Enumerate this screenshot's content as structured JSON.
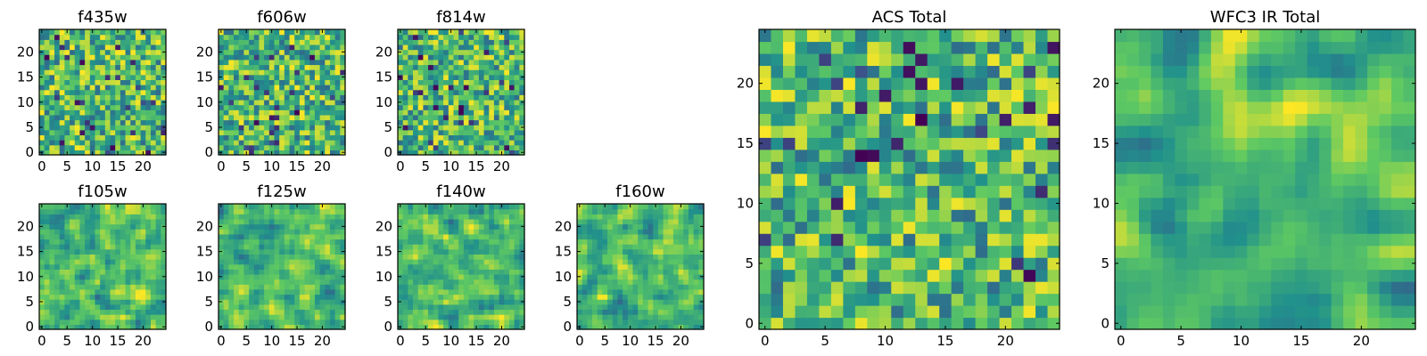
{
  "chart_data": {
    "type": "heatmap",
    "colormap": "viridis",
    "color_stops": [
      "#440154",
      "#3b528b",
      "#21918c",
      "#5ec962",
      "#fde725"
    ],
    "grid_size": 25,
    "panels": [
      {
        "id": "f435w",
        "title": "f435w",
        "xticks": [
          "0",
          "5",
          "10",
          "15",
          "20"
        ],
        "yticks": [
          "0",
          "5",
          "10",
          "15",
          "20"
        ],
        "smoothness": 0
      },
      {
        "id": "f606w",
        "title": "f606w",
        "xticks": [
          "0",
          "5",
          "10",
          "15",
          "20"
        ],
        "yticks": [
          "0",
          "5",
          "10",
          "15",
          "20"
        ],
        "smoothness": 0
      },
      {
        "id": "f814w",
        "title": "f814w",
        "xticks": [
          "0",
          "5",
          "10",
          "15",
          "20"
        ],
        "yticks": [
          "0",
          "5",
          "10",
          "15",
          "20"
        ],
        "smoothness": 0
      },
      {
        "id": "f105w",
        "title": "f105w",
        "xticks": [
          "0",
          "5",
          "10",
          "15",
          "20"
        ],
        "yticks": [
          "0",
          "5",
          "10",
          "15",
          "20"
        ],
        "smoothness": 1
      },
      {
        "id": "f125w",
        "title": "f125w",
        "xticks": [
          "0",
          "5",
          "10",
          "15",
          "20"
        ],
        "yticks": [
          "0",
          "5",
          "10",
          "15",
          "20"
        ],
        "smoothness": 1
      },
      {
        "id": "f140w",
        "title": "f140w",
        "xticks": [
          "0",
          "5",
          "10",
          "15",
          "20"
        ],
        "yticks": [
          "0",
          "5",
          "10",
          "15",
          "20"
        ],
        "smoothness": 1
      },
      {
        "id": "f160w",
        "title": "f160w",
        "xticks": [
          "0",
          "5",
          "10",
          "15",
          "20"
        ],
        "yticks": [
          "0",
          "5",
          "10",
          "15",
          "20"
        ],
        "smoothness": 1
      },
      {
        "id": "acs-total",
        "title": "ACS Total",
        "xticks": [
          "0",
          "5",
          "10",
          "15",
          "20"
        ],
        "yticks": [
          "0",
          "5",
          "10",
          "15",
          "20"
        ],
        "smoothness": 0
      },
      {
        "id": "wfc3-ir-total",
        "title": "WFC3 IR Total",
        "xticks": [
          "0",
          "5",
          "10",
          "15",
          "20"
        ],
        "yticks": [
          "0",
          "5",
          "10",
          "15",
          "20"
        ],
        "smoothness": 2
      }
    ]
  }
}
